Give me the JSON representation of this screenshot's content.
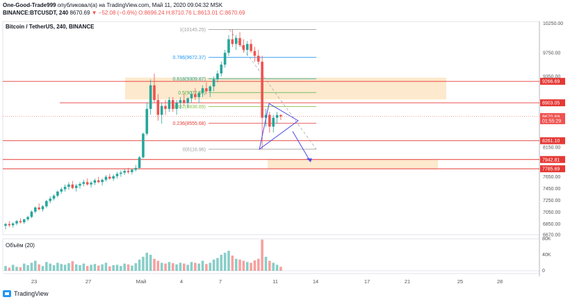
{
  "header": {
    "line1_author": "One-Good-Trade999",
    "line1_rest": "опубликовал(а) на TradingView.com, Май 11, 2020 09:04:32 MSK",
    "line2_symbol": "BINANCE:BTCUSDT, 240",
    "line2_price": "8670.69",
    "line2_change": "▼ −52.08 (−0.6%)",
    "line2_ohlc": "O:8696.24 H:8710.76 L:8613.01 C:8670.69"
  },
  "legend": "Bitcoin / TetherUS, 240, BINANCE",
  "volume_label": "Объём (20)",
  "footer_brand": "TradingView",
  "colors": {
    "up": "#26a69a",
    "down": "#ef5350",
    "line_red": "#e53935",
    "zone": "#fde3c0",
    "fib": "#a9a9a9",
    "blue": "#4a4ae6"
  },
  "chart_data": {
    "type": "candlestick",
    "title": "Bitcoin / TetherUS, 240, BINANCE",
    "x_ticks": [
      "23",
      "27",
      "Май",
      "4",
      "7",
      "11",
      "14",
      "17",
      "21",
      "25",
      "28"
    ],
    "y_ticks": [
      "10250.00",
      "9750.00",
      "9350.00",
      "8150.00",
      "7650.00",
      "7450.00",
      "7250.00",
      "7050.00",
      "6850.00",
      "6670.00"
    ],
    "ylim": [
      6670,
      10280
    ],
    "price_labels": [
      {
        "value": 9266.69,
        "text": "9266.69",
        "color": "#e53935"
      },
      {
        "value": 8903.05,
        "text": "8903.05",
        "color": "#e53935"
      },
      {
        "value": 8670.69,
        "text": "8670.69",
        "color": "#ef5350"
      },
      {
        "value": 8600,
        "text": "01:55:29",
        "color": "#ef5350"
      },
      {
        "value": 8261.1,
        "text": "8261.10",
        "color": "#e53935"
      },
      {
        "value": 7942.81,
        "text": "7942.81",
        "color": "#e53935"
      },
      {
        "value": 7785.69,
        "text": "7785.69",
        "color": "#e53935"
      }
    ],
    "fib_levels": [
      {
        "label": "1(10145.25)",
        "value": 10145.25,
        "color": "#9e9e9e"
      },
      {
        "label": "0.786(9672.37)",
        "value": 9672.37,
        "color": "#2196f3"
      },
      {
        "label": "0.618(9309.87)",
        "value": 9309.87,
        "color": "#26a69a"
      },
      {
        "label": "0.5(9077.61)",
        "value": 9077.61,
        "color": "#4caf50"
      },
      {
        "label": "0.382(8838.89)",
        "value": 8838.89,
        "color": "#8bc34a"
      },
      {
        "label": "0.236(8555.68)",
        "value": 8555.68,
        "color": "#e53935"
      },
      {
        "label": "0(8116.96)",
        "value": 8116.96,
        "color": "#9e9e9e"
      }
    ],
    "volume_ticks": [
      "80K",
      "40K",
      "0"
    ],
    "volume_max": 80000,
    "candles": [
      [
        6820,
        6870,
        6760,
        6850
      ],
      [
        6850,
        6900,
        6800,
        6830
      ],
      [
        6830,
        6880,
        6790,
        6860
      ],
      [
        6860,
        6920,
        6830,
        6900
      ],
      [
        6900,
        6950,
        6860,
        6880
      ],
      [
        6880,
        6940,
        6850,
        6930
      ],
      [
        6930,
        6990,
        6900,
        6970
      ],
      [
        6970,
        7080,
        6950,
        7060
      ],
      [
        7060,
        7150,
        7030,
        7130
      ],
      [
        7130,
        7200,
        7080,
        7100
      ],
      [
        7100,
        7170,
        7060,
        7150
      ],
      [
        7150,
        7260,
        7120,
        7240
      ],
      [
        7240,
        7320,
        7200,
        7280
      ],
      [
        7280,
        7350,
        7250,
        7330
      ],
      [
        7330,
        7420,
        7300,
        7400
      ],
      [
        7400,
        7470,
        7360,
        7440
      ],
      [
        7440,
        7520,
        7400,
        7480
      ],
      [
        7480,
        7560,
        7430,
        7520
      ],
      [
        7520,
        7580,
        7440,
        7460
      ],
      [
        7460,
        7530,
        7400,
        7500
      ],
      [
        7500,
        7560,
        7450,
        7530
      ],
      [
        7530,
        7600,
        7490,
        7560
      ],
      [
        7560,
        7620,
        7500,
        7520
      ],
      [
        7520,
        7580,
        7470,
        7550
      ],
      [
        7550,
        7620,
        7510,
        7590
      ],
      [
        7590,
        7650,
        7540,
        7560
      ],
      [
        7560,
        7620,
        7500,
        7600
      ],
      [
        7600,
        7680,
        7570,
        7650
      ],
      [
        7650,
        7700,
        7600,
        7620
      ],
      [
        7620,
        7690,
        7580,
        7660
      ],
      [
        7660,
        7730,
        7620,
        7700
      ],
      [
        7700,
        7760,
        7650,
        7720
      ],
      [
        7720,
        7780,
        7680,
        7750
      ],
      [
        7750,
        7800,
        7700,
        7730
      ],
      [
        7730,
        7790,
        7690,
        7770
      ],
      [
        7770,
        7850,
        7740,
        7800
      ],
      [
        7800,
        8000,
        7780,
        7980
      ],
      [
        7980,
        8400,
        7960,
        8380
      ],
      [
        8380,
        8900,
        8350,
        8800
      ],
      [
        8800,
        9300,
        8700,
        9200
      ],
      [
        9200,
        9400,
        8900,
        8950
      ],
      [
        8950,
        9050,
        8600,
        8700
      ],
      [
        8700,
        8900,
        8550,
        8850
      ],
      [
        8850,
        8950,
        8700,
        8800
      ],
      [
        8800,
        9000,
        8750,
        8950
      ],
      [
        8950,
        9000,
        8750,
        8800
      ],
      [
        8800,
        8950,
        8700,
        8900
      ],
      [
        8900,
        9000,
        8800,
        8950
      ],
      [
        8950,
        9050,
        8850,
        8900
      ],
      [
        8900,
        9000,
        8820,
        8980
      ],
      [
        8980,
        9100,
        8900,
        9050
      ],
      [
        9050,
        9150,
        8950,
        9000
      ],
      [
        9000,
        9100,
        8900,
        9070
      ],
      [
        9070,
        9200,
        9000,
        9150
      ],
      [
        9150,
        9250,
        9050,
        9100
      ],
      [
        9100,
        9200,
        9000,
        9180
      ],
      [
        9180,
        9350,
        9100,
        9300
      ],
      [
        9300,
        9450,
        9250,
        9400
      ],
      [
        9400,
        9600,
        9350,
        9550
      ],
      [
        9550,
        9800,
        9500,
        9750
      ],
      [
        9750,
        10050,
        9700,
        9980
      ],
      [
        9980,
        10145,
        9850,
        9900
      ],
      [
        9900,
        10050,
        9800,
        10000
      ],
      [
        10000,
        10100,
        9850,
        9880
      ],
      [
        9880,
        9980,
        9750,
        9800
      ],
      [
        9800,
        9950,
        9700,
        9900
      ],
      [
        9900,
        9980,
        9750,
        9780
      ],
      [
        9780,
        9850,
        9600,
        9700
      ],
      [
        9700,
        9800,
        9550,
        9600
      ],
      [
        9600,
        9700,
        8117,
        8650
      ],
      [
        8650,
        8800,
        8500,
        8700
      ],
      [
        8700,
        8750,
        8400,
        8500
      ],
      [
        8500,
        8700,
        8400,
        8650
      ],
      [
        8650,
        8750,
        8550,
        8696
      ],
      [
        8696,
        8711,
        8613,
        8671
      ]
    ],
    "volumes": [
      12,
      8,
      15,
      10,
      9,
      18,
      14,
      20,
      25,
      16,
      12,
      22,
      18,
      14,
      20,
      17,
      15,
      19,
      24,
      16,
      14,
      18,
      12,
      15,
      17,
      13,
      16,
      20,
      11,
      14,
      15,
      12,
      18,
      16,
      13,
      19,
      28,
      35,
      45,
      40,
      30,
      25,
      20,
      18,
      22,
      19,
      16,
      20,
      18,
      15,
      22,
      20,
      18,
      25,
      17,
      20,
      28,
      32,
      40,
      45,
      50,
      38,
      30,
      28,
      25,
      22,
      20,
      26,
      30,
      78,
      35,
      25,
      20,
      15,
      10
    ]
  }
}
